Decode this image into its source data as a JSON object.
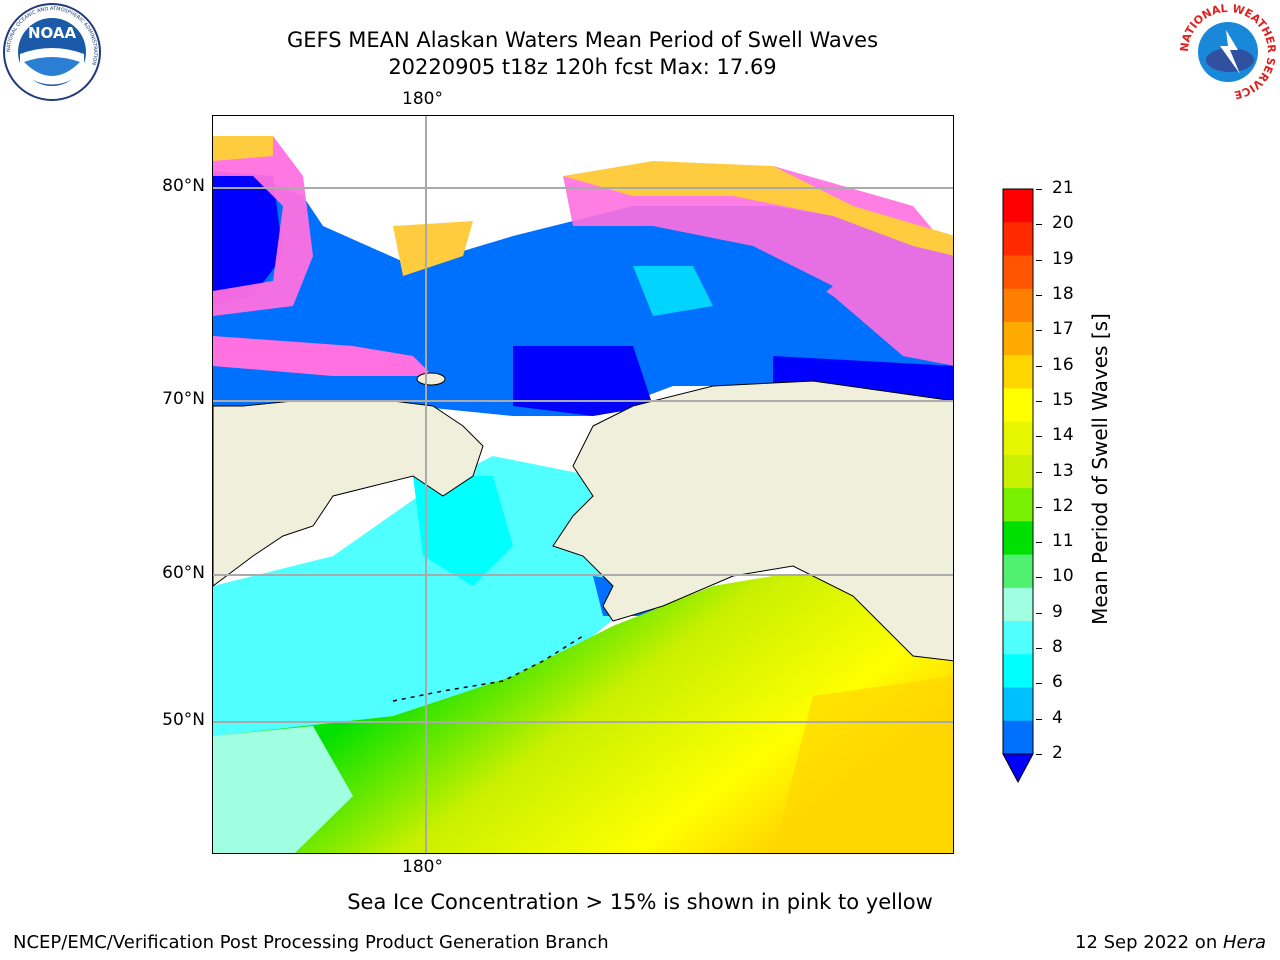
{
  "header": {
    "title_line1": "GEFS MEAN Alaskan Waters Mean Period of Swell Waves",
    "title_line2": "20220905 t18z 120h fcst   Max: 17.69"
  },
  "logos": {
    "noaa_text": "NOAA",
    "noaa_ring_text": "NATIONAL OCEANIC AND ATMOSPHERIC ADMINISTRATION",
    "nws_ring_text": "NATIONAL WEATHER SERVICE"
  },
  "map": {
    "lat_labels": [
      "80°N",
      "70°N",
      "60°N",
      "50°N"
    ],
    "lon_label_top": "180°",
    "lon_label_bottom": "180°",
    "colors": {
      "land": "#efefdc",
      "ocean_ice": "#ffffff"
    }
  },
  "colorbar": {
    "label": "Mean Period of Swell Waves [s]",
    "ticks": [
      "21",
      "20",
      "19",
      "18",
      "17",
      "16",
      "15",
      "14",
      "13",
      "12",
      "11",
      "10",
      "9",
      "8",
      "6",
      "4",
      "2"
    ],
    "colors": [
      "#ff0000",
      "#ff2a00",
      "#ff5500",
      "#ff8000",
      "#ffaa00",
      "#ffd500",
      "#ffff00",
      "#e6f500",
      "#c8f000",
      "#78f000",
      "#00e000",
      "#50f070",
      "#a0ffe0",
      "#50ffff",
      "#00ffff",
      "#00c0ff",
      "#0070ff"
    ],
    "under_color": "#0000ff"
  },
  "note": "Sea Ice Concentration > 15% is shown in pink to yellow",
  "footer": {
    "left": "NCEP/EMC/Verification Post Processing Product Generation Branch",
    "right_date": "12 Sep 2022 on ",
    "right_host": "Hera"
  }
}
